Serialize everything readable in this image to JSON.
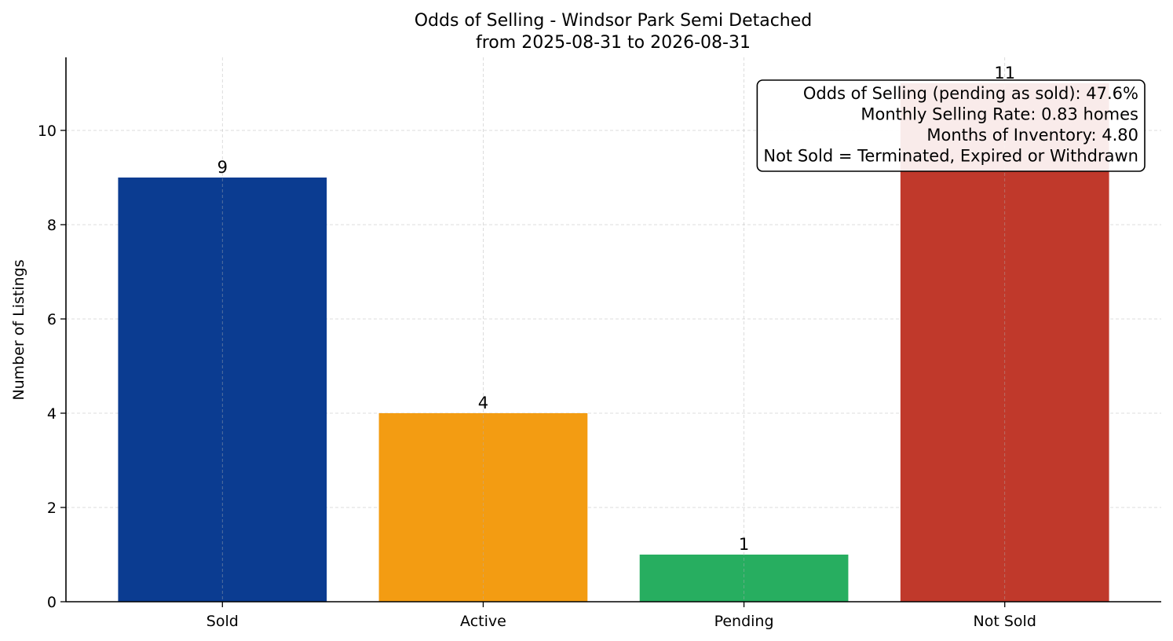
{
  "chart_data": {
    "type": "bar",
    "title": "Odds of Selling - Windsor Park Semi Detached",
    "subtitle": "from 2025-08-31 to 2026-08-31",
    "xlabel": "",
    "ylabel": "Number of Listings",
    "categories": [
      "Sold",
      "Active",
      "Pending",
      "Not Sold"
    ],
    "values": [
      9,
      4,
      1,
      11
    ],
    "colors": [
      "#0b3c91",
      "#f39c12",
      "#27ae60",
      "#c0392b"
    ],
    "ylim": [
      0,
      11.55
    ],
    "yticks": [
      0,
      2,
      4,
      6,
      8,
      10
    ],
    "grid": true,
    "annotation": {
      "lines": [
        "Odds of Selling (pending as sold): 47.6%",
        "Monthly Selling Rate: 0.83 homes",
        "Months of Inventory: 4.80",
        "Not Sold = Terminated, Expired or Withdrawn"
      ],
      "placement": "top-right"
    }
  }
}
